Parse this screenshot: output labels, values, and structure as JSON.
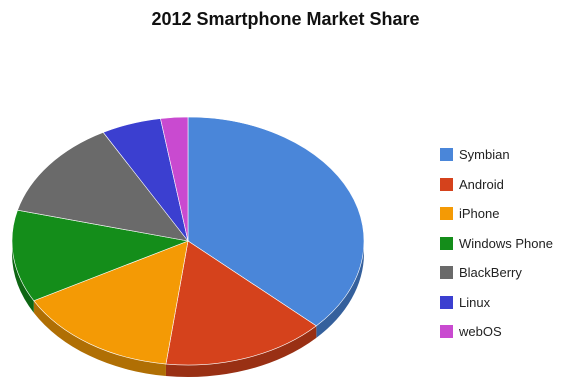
{
  "chart_data": {
    "type": "pie",
    "title": "2012 Smartphone Market Share",
    "legend_position": "right",
    "three_d": true,
    "slices": [
      {
        "label": "Symbian",
        "value": 37.0,
        "color": "#4a86d9"
      },
      {
        "label": "Android",
        "value": 15.0,
        "color": "#d5421c"
      },
      {
        "label": "iPhone",
        "value": 15.0,
        "color": "#f49a05"
      },
      {
        "label": "Windows Phone",
        "value": 12.0,
        "color": "#148d1a"
      },
      {
        "label": "BlackBerry",
        "value": 13.0,
        "color": "#6a6a6a"
      },
      {
        "label": "Linux",
        "value": 5.5,
        "color": "#3b3fd0"
      },
      {
        "label": "webOS",
        "value": 2.5,
        "color": "#c94ad0"
      }
    ]
  }
}
